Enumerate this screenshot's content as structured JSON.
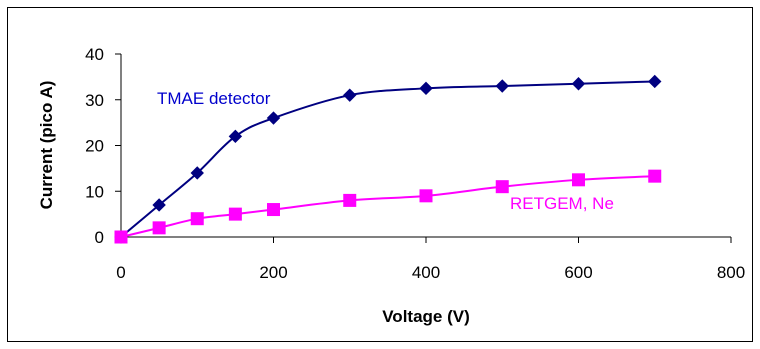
{
  "chart_data": {
    "type": "line",
    "title": "",
    "xlabel": "Voltage (V)",
    "ylabel": "Current (pico A)",
    "xlim": [
      0,
      800
    ],
    "ylim": [
      0,
      40
    ],
    "xticks": [
      0,
      200,
      400,
      600,
      800
    ],
    "yticks": [
      0,
      10,
      20,
      30,
      40
    ],
    "grid": false,
    "legend": "none",
    "series": [
      {
        "name": "TMAE detector",
        "color": "#000080",
        "marker": "diamond",
        "x": [
          0,
          50,
          100,
          150,
          200,
          300,
          400,
          500,
          600,
          700
        ],
        "y": [
          0,
          7,
          14,
          22,
          26,
          31,
          32.5,
          33,
          33.5,
          34
        ]
      },
      {
        "name": "RETGEM, Ne",
        "color": "#ff00ff",
        "marker": "square",
        "x": [
          0,
          50,
          100,
          150,
          200,
          300,
          400,
          500,
          600,
          700
        ],
        "y": [
          0,
          2,
          4,
          5,
          6,
          8,
          9,
          11,
          12.5,
          13.3
        ]
      }
    ]
  }
}
